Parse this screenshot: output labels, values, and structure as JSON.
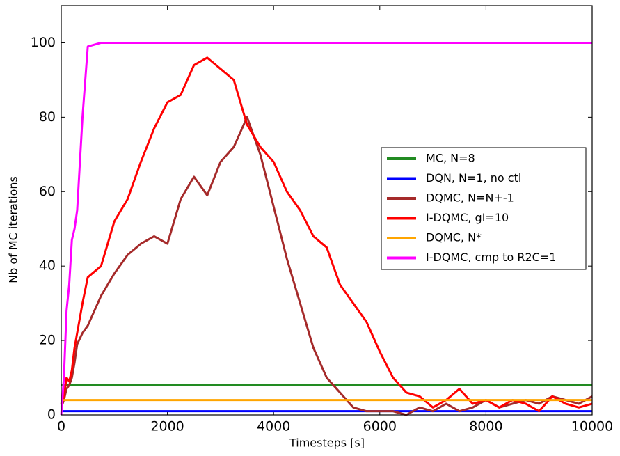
{
  "chart_data": {
    "type": "line",
    "x_label": "Timesteps [s]",
    "y_label": "Nb of MC iterations",
    "x": [
      0,
      50,
      100,
      150,
      200,
      250,
      300,
      400,
      500,
      750,
      1000,
      1250,
      1500,
      1750,
      2000,
      2250,
      2500,
      2750,
      3000,
      3250,
      3500,
      3750,
      4000,
      4250,
      4500,
      4750,
      5000,
      5250,
      5500,
      5750,
      6000,
      6250,
      6500,
      6750,
      7000,
      7250,
      7500,
      7750,
      8000,
      8250,
      8500,
      8750,
      9000,
      9250,
      9500,
      9750,
      10000
    ],
    "xlim": [
      0,
      10000
    ],
    "xticks": [
      0,
      2000,
      4000,
      6000,
      8000,
      10000
    ],
    "ylim": [
      0,
      110
    ],
    "yticks": [
      0,
      20,
      40,
      60,
      80,
      100
    ],
    "grid": false,
    "legend": "right",
    "series": [
      {
        "name": "MC, N=8",
        "color": "#228b22",
        "values": [
          8,
          8,
          8,
          8,
          8,
          8,
          8,
          8,
          8,
          8,
          8,
          8,
          8,
          8,
          8,
          8,
          8,
          8,
          8,
          8,
          8,
          8,
          8,
          8,
          8,
          8,
          8,
          8,
          8,
          8,
          8,
          8,
          8,
          8,
          8,
          8,
          8,
          8,
          8,
          8,
          8,
          8,
          8,
          8,
          8,
          8,
          8
        ]
      },
      {
        "name": "DQN, N=1, no ctl",
        "color": "#0000ff",
        "values": [
          1,
          1,
          1,
          1,
          1,
          1,
          1,
          1,
          1,
          1,
          1,
          1,
          1,
          1,
          1,
          1,
          1,
          1,
          1,
          1,
          1,
          1,
          1,
          1,
          1,
          1,
          1,
          1,
          1,
          1,
          1,
          1,
          1,
          1,
          1,
          1,
          1,
          1,
          1,
          1,
          1,
          1,
          1,
          1,
          1,
          1,
          1
        ]
      },
      {
        "name": "DQMC, N=N+-1",
        "color": "#a52a2a",
        "values": [
          2,
          4,
          7,
          8,
          10,
          14,
          19,
          22,
          24,
          32,
          38,
          43,
          46,
          48,
          46,
          58,
          64,
          59,
          68,
          72,
          80,
          70,
          56,
          42,
          30,
          18,
          10,
          6,
          2,
          1,
          1,
          1,
          0,
          2,
          1,
          3,
          1,
          2,
          4,
          2,
          3,
          4,
          3,
          5,
          4,
          3,
          5
        ]
      },
      {
        "name": "I-DQMC, gI=10",
        "color": "#ff0000",
        "values": [
          3,
          5,
          10,
          9,
          12,
          18,
          22,
          30,
          37,
          40,
          52,
          58,
          68,
          77,
          84,
          86,
          94,
          96,
          93,
          90,
          78,
          72,
          68,
          60,
          55,
          48,
          45,
          35,
          30,
          25,
          17,
          10,
          6,
          5,
          2,
          4,
          7,
          3,
          4,
          2,
          4,
          3,
          1,
          5,
          3,
          2,
          3
        ]
      },
      {
        "name": "DQMC, N*",
        "color": "#ffa500",
        "values": [
          4,
          4,
          4,
          4,
          4,
          4,
          4,
          4,
          4,
          4,
          4,
          4,
          4,
          4,
          4,
          4,
          4,
          4,
          4,
          4,
          4,
          4,
          4,
          4,
          4,
          4,
          4,
          4,
          4,
          4,
          4,
          4,
          4,
          4,
          4,
          4,
          4,
          4,
          4,
          4,
          4,
          4,
          4,
          4,
          4,
          4,
          4
        ]
      },
      {
        "name": "I-DQMC, cmp to R2C=1",
        "color": "#ff00ff",
        "values": [
          0,
          10,
          28,
          35,
          47,
          50,
          55,
          80,
          99,
          100,
          100,
          100,
          100,
          100,
          100,
          100,
          100,
          100,
          100,
          100,
          100,
          100,
          100,
          100,
          100,
          100,
          100,
          100,
          100,
          100,
          100,
          100,
          100,
          100,
          100,
          100,
          100,
          100,
          100,
          100,
          100,
          100,
          100,
          100,
          100,
          100,
          100
        ]
      }
    ]
  }
}
